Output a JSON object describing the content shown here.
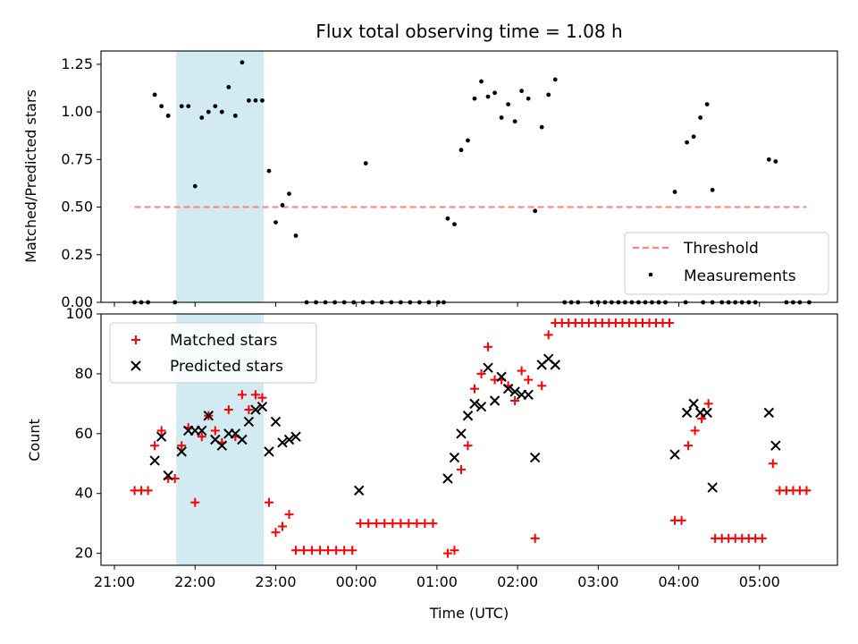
{
  "colors": {
    "threshold": "#ff7f7f",
    "measurement": "#000000",
    "matched": "#ff0000",
    "predicted": "#000000",
    "highlight": "#add8e6"
  },
  "chart_data": [
    {
      "type": "scatter",
      "title": "Flux total observing time = 1.08 h",
      "xlabel": "",
      "ylabel": "Matched/Predicted stars",
      "xlim": [
        "20:50",
        "05:58"
      ],
      "ylim": [
        0,
        1.32
      ],
      "yticks": [
        0.0,
        0.25,
        0.5,
        0.75,
        1.0,
        1.25
      ],
      "ytick_labels": [
        "0.00",
        "0.25",
        "0.50",
        "0.75",
        "1.00",
        "1.25"
      ],
      "highlight_span": [
        "21:46",
        "22:51"
      ],
      "threshold": {
        "name": "Threshold",
        "y": 0.5,
        "x": [
          "21:15",
          "05:35"
        ]
      },
      "legend": {
        "position": "lower right",
        "entries": [
          "Threshold",
          "Measurements"
        ]
      },
      "series": [
        {
          "name": "Measurements",
          "marker": "dot",
          "points": [
            [
              "21:15",
              0
            ],
            [
              "21:20",
              0
            ],
            [
              "21:25",
              0
            ],
            [
              "21:30",
              1.09
            ],
            [
              "21:35",
              1.03
            ],
            [
              "21:40",
              0.98
            ],
            [
              "21:45",
              0
            ],
            [
              "21:50",
              1.03
            ],
            [
              "21:55",
              1.03
            ],
            [
              "22:00",
              0.61
            ],
            [
              "22:05",
              0.97
            ],
            [
              "22:10",
              1.0
            ],
            [
              "22:15",
              1.03
            ],
            [
              "22:20",
              1.0
            ],
            [
              "22:25",
              1.13
            ],
            [
              "22:30",
              0.98
            ],
            [
              "22:35",
              1.26
            ],
            [
              "22:40",
              1.06
            ],
            [
              "22:45",
              1.06
            ],
            [
              "22:50",
              1.06
            ],
            [
              "22:55",
              0.69
            ],
            [
              "23:00",
              0.42
            ],
            [
              "23:05",
              0.51
            ],
            [
              "23:10",
              0.57
            ],
            [
              "23:15",
              0.35
            ],
            [
              "23:23",
              0
            ],
            [
              "23:30",
              0
            ],
            [
              "23:37",
              0
            ],
            [
              "23:44",
              0
            ],
            [
              "23:51",
              0
            ],
            [
              "23:58",
              0
            ],
            [
              "00:05",
              0
            ],
            [
              "00:12",
              0
            ],
            [
              "00:19",
              0
            ],
            [
              "00:26",
              0
            ],
            [
              "00:33",
              0
            ],
            [
              "00:40",
              0
            ],
            [
              "00:47",
              0
            ],
            [
              "00:54",
              0
            ],
            [
              "01:01",
              0
            ],
            [
              "01:05",
              0
            ],
            [
              "00:07",
              0.73
            ],
            [
              "01:08",
              0.44
            ],
            [
              "01:13",
              0.41
            ],
            [
              "01:18",
              0.8
            ],
            [
              "01:23",
              0.85
            ],
            [
              "01:28",
              1.07
            ],
            [
              "01:33",
              1.16
            ],
            [
              "01:38",
              1.08
            ],
            [
              "01:43",
              1.1
            ],
            [
              "01:48",
              0.97
            ],
            [
              "01:53",
              1.04
            ],
            [
              "01:58",
              0.95
            ],
            [
              "02:03",
              1.11
            ],
            [
              "02:08",
              1.07
            ],
            [
              "02:13",
              0.48
            ],
            [
              "02:18",
              0.92
            ],
            [
              "02:23",
              1.09
            ],
            [
              "02:28",
              1.17
            ],
            [
              "02:35",
              0
            ],
            [
              "02:40",
              0
            ],
            [
              "02:45",
              0
            ],
            [
              "02:55",
              0
            ],
            [
              "03:00",
              0
            ],
            [
              "03:05",
              0
            ],
            [
              "03:10",
              0
            ],
            [
              "03:15",
              0
            ],
            [
              "03:20",
              0
            ],
            [
              "03:25",
              0
            ],
            [
              "03:30",
              0
            ],
            [
              "03:35",
              0
            ],
            [
              "03:40",
              0
            ],
            [
              "03:45",
              0
            ],
            [
              "03:50",
              0
            ],
            [
              "04:05",
              0
            ],
            [
              "03:57",
              0.58
            ],
            [
              "04:06",
              0.84
            ],
            [
              "04:11",
              0.87
            ],
            [
              "04:16",
              0.97
            ],
            [
              "04:21",
              1.04
            ],
            [
              "04:25",
              0.59
            ],
            [
              "04:18",
              0
            ],
            [
              "04:25",
              0
            ],
            [
              "04:32",
              0
            ],
            [
              "04:37",
              0
            ],
            [
              "04:42",
              0
            ],
            [
              "04:47",
              0
            ],
            [
              "04:52",
              0
            ],
            [
              "04:57",
              0
            ],
            [
              "05:07",
              0.75
            ],
            [
              "05:12",
              0.74
            ],
            [
              "05:20",
              0
            ],
            [
              "05:25",
              0
            ],
            [
              "05:30",
              0
            ],
            [
              "05:37",
              0
            ]
          ]
        }
      ]
    },
    {
      "type": "scatter",
      "title": "",
      "xlabel": "Time (UTC)",
      "ylabel": "Count",
      "xlim": [
        "20:50",
        "05:58"
      ],
      "ylim": [
        16,
        100
      ],
      "yticks": [
        20,
        40,
        60,
        80,
        100
      ],
      "xticks": [
        "21:00",
        "22:00",
        "23:00",
        "00:00",
        "01:00",
        "02:00",
        "03:00",
        "04:00",
        "05:00"
      ],
      "highlight_span": [
        "21:46",
        "22:51"
      ],
      "legend": {
        "position": "upper left",
        "entries": [
          "Matched stars",
          "Predicted stars"
        ]
      },
      "series": [
        {
          "name": "Matched stars",
          "marker": "plus",
          "points": [
            [
              "21:15",
              41
            ],
            [
              "21:20",
              41
            ],
            [
              "21:25",
              41
            ],
            [
              "21:30",
              56
            ],
            [
              "21:35",
              61
            ],
            [
              "21:40",
              45
            ],
            [
              "21:45",
              45
            ],
            [
              "21:50",
              56
            ],
            [
              "21:55",
              62
            ],
            [
              "22:00",
              37
            ],
            [
              "22:05",
              59
            ],
            [
              "22:10",
              66
            ],
            [
              "22:15",
              61
            ],
            [
              "22:20",
              57
            ],
            [
              "22:25",
              68
            ],
            [
              "22:30",
              59
            ],
            [
              "22:35",
              73
            ],
            [
              "22:40",
              68
            ],
            [
              "22:45",
              73
            ],
            [
              "22:50",
              72
            ],
            [
              "22:55",
              37
            ],
            [
              "23:00",
              27
            ],
            [
              "23:05",
              29
            ],
            [
              "23:10",
              33
            ],
            [
              "23:15",
              21
            ],
            [
              "23:21",
              21
            ],
            [
              "23:27",
              21
            ],
            [
              "23:33",
              21
            ],
            [
              "23:39",
              21
            ],
            [
              "23:45",
              21
            ],
            [
              "23:51",
              21
            ],
            [
              "23:57",
              21
            ],
            [
              "00:03",
              30
            ],
            [
              "00:09",
              30
            ],
            [
              "00:15",
              30
            ],
            [
              "00:21",
              30
            ],
            [
              "00:27",
              30
            ],
            [
              "00:33",
              30
            ],
            [
              "00:39",
              30
            ],
            [
              "00:45",
              30
            ],
            [
              "00:51",
              30
            ],
            [
              "00:57",
              30
            ],
            [
              "01:08",
              20
            ],
            [
              "01:13",
              21
            ],
            [
              "01:18",
              48
            ],
            [
              "01:23",
              56
            ],
            [
              "01:28",
              75
            ],
            [
              "01:33",
              80
            ],
            [
              "01:38",
              89
            ],
            [
              "01:43",
              78
            ],
            [
              "01:48",
              78
            ],
            [
              "01:53",
              76
            ],
            [
              "01:58",
              71
            ],
            [
              "02:03",
              81
            ],
            [
              "02:08",
              78
            ],
            [
              "02:13",
              25
            ],
            [
              "02:18",
              76
            ],
            [
              "02:23",
              93
            ],
            [
              "02:28",
              97
            ],
            [
              "02:33",
              97
            ],
            [
              "02:38",
              97
            ],
            [
              "02:43",
              97
            ],
            [
              "02:48",
              97
            ],
            [
              "02:53",
              97
            ],
            [
              "02:58",
              97
            ],
            [
              "03:03",
              97
            ],
            [
              "03:08",
              97
            ],
            [
              "03:13",
              97
            ],
            [
              "03:18",
              97
            ],
            [
              "03:23",
              97
            ],
            [
              "03:28",
              97
            ],
            [
              "03:33",
              97
            ],
            [
              "03:38",
              97
            ],
            [
              "03:43",
              97
            ],
            [
              "03:48",
              97
            ],
            [
              "03:53",
              97
            ],
            [
              "03:57",
              31
            ],
            [
              "04:02",
              31
            ],
            [
              "04:07",
              56
            ],
            [
              "04:12",
              61
            ],
            [
              "04:17",
              65
            ],
            [
              "04:22",
              70
            ],
            [
              "04:27",
              25
            ],
            [
              "04:32",
              25
            ],
            [
              "04:37",
              25
            ],
            [
              "04:42",
              25
            ],
            [
              "04:47",
              25
            ],
            [
              "04:52",
              25
            ],
            [
              "04:57",
              25
            ],
            [
              "05:02",
              25
            ],
            [
              "05:10",
              50
            ],
            [
              "05:15",
              41
            ],
            [
              "05:20",
              41
            ],
            [
              "05:25",
              41
            ],
            [
              "05:30",
              41
            ],
            [
              "05:35",
              41
            ]
          ]
        },
        {
          "name": "Predicted stars",
          "marker": "x",
          "points": [
            [
              "21:30",
              51
            ],
            [
              "21:35",
              59
            ],
            [
              "21:40",
              46
            ],
            [
              "21:50",
              54
            ],
            [
              "21:55",
              61
            ],
            [
              "22:00",
              61
            ],
            [
              "22:05",
              61
            ],
            [
              "22:10",
              66
            ],
            [
              "22:15",
              58
            ],
            [
              "22:20",
              56
            ],
            [
              "22:25",
              60
            ],
            [
              "22:30",
              60
            ],
            [
              "22:35",
              58
            ],
            [
              "22:40",
              64
            ],
            [
              "22:45",
              68
            ],
            [
              "22:50",
              69
            ],
            [
              "22:55",
              54
            ],
            [
              "23:00",
              64
            ],
            [
              "23:05",
              57
            ],
            [
              "23:10",
              58
            ],
            [
              "23:15",
              59
            ],
            [
              "00:02",
              41
            ],
            [
              "01:08",
              45
            ],
            [
              "01:13",
              52
            ],
            [
              "01:18",
              60
            ],
            [
              "01:23",
              66
            ],
            [
              "01:28",
              70
            ],
            [
              "01:33",
              69
            ],
            [
              "01:38",
              82
            ],
            [
              "01:43",
              71
            ],
            [
              "01:48",
              79
            ],
            [
              "01:53",
              75
            ],
            [
              "01:58",
              74
            ],
            [
              "02:03",
              73
            ],
            [
              "02:08",
              73
            ],
            [
              "02:13",
              52
            ],
            [
              "02:18",
              83
            ],
            [
              "02:23",
              85
            ],
            [
              "02:28",
              83
            ],
            [
              "03:57",
              53
            ],
            [
              "04:06",
              67
            ],
            [
              "04:11",
              70
            ],
            [
              "04:16",
              67
            ],
            [
              "04:21",
              67
            ],
            [
              "04:25",
              42
            ],
            [
              "05:07",
              67
            ],
            [
              "05:12",
              56
            ]
          ]
        }
      ]
    }
  ]
}
